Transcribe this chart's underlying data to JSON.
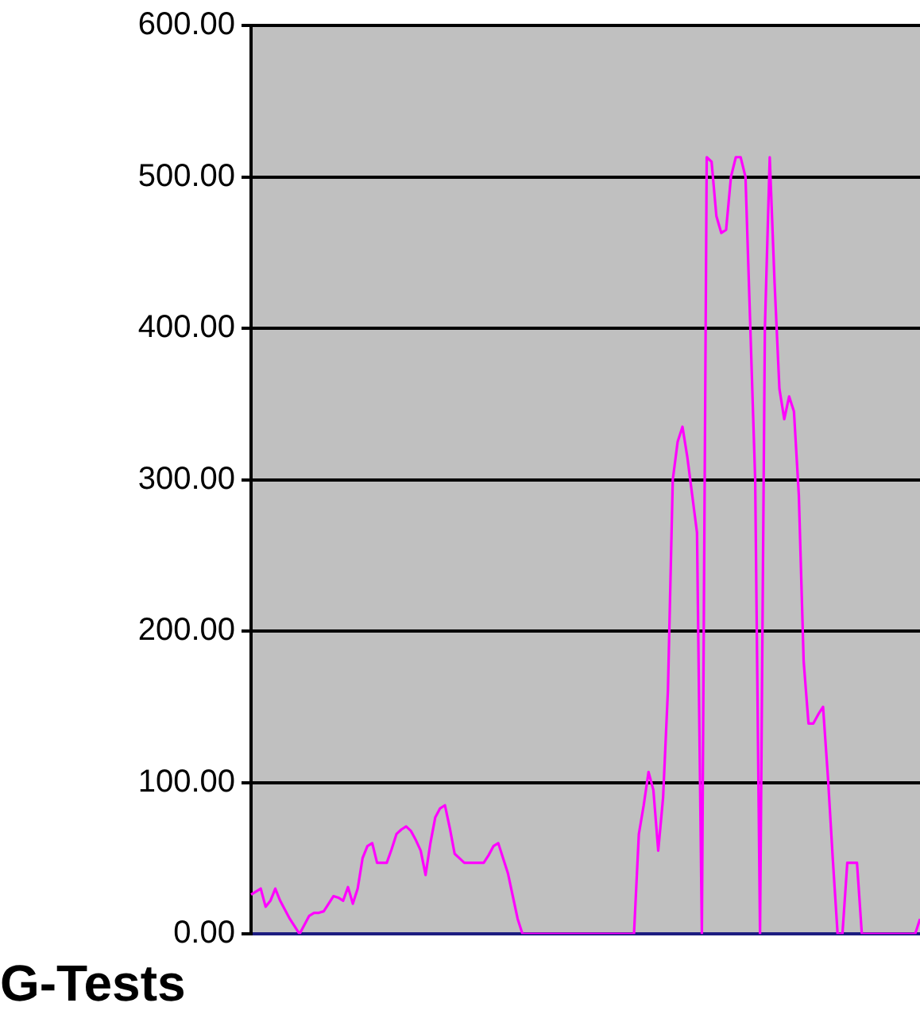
{
  "chart_data": {
    "type": "line",
    "title": "G-Tests",
    "categories": [
      null,
      null,
      null,
      null,
      null,
      null,
      null,
      null,
      null,
      null,
      null,
      null,
      null,
      null,
      null,
      null,
      null,
      null,
      null,
      null,
      null,
      null,
      null,
      null,
      null,
      null,
      null,
      null,
      null,
      null,
      null,
      null,
      null,
      null,
      null,
      null,
      null,
      null,
      null,
      null,
      null,
      null,
      null,
      null,
      null,
      null,
      null,
      null,
      null,
      null,
      null,
      null,
      null,
      null,
      null,
      null,
      null,
      null,
      null,
      null,
      null,
      null,
      null,
      null,
      null,
      null,
      null,
      null,
      null,
      null,
      null,
      null,
      null,
      null,
      null,
      null,
      null,
      null,
      null,
      null,
      null,
      null,
      null,
      null,
      null,
      null,
      null,
      null,
      null,
      null,
      null,
      null,
      null,
      null,
      null,
      null,
      null,
      null,
      null,
      null,
      null,
      null,
      null,
      null,
      null,
      null,
      null,
      null,
      null,
      null,
      null,
      null,
      null,
      null,
      null,
      null,
      null,
      null,
      null,
      null,
      null,
      null,
      null,
      null,
      null,
      null,
      null,
      null,
      null,
      null,
      null,
      null,
      null,
      null,
      null,
      null,
      null,
      null,
      null
    ],
    "series": [
      {
        "color": "#ff00ff",
        "values": [
          26,
          28,
          30,
          18,
          22,
          30,
          22,
          16,
          10,
          5,
          0,
          6,
          12,
          14,
          14,
          15,
          20,
          25,
          24,
          22,
          31,
          20,
          30,
          50,
          58,
          60,
          47,
          47,
          47,
          56,
          66,
          69,
          71,
          68,
          62,
          55,
          39,
          60,
          77,
          83,
          85,
          70,
          53,
          50,
          47,
          47,
          47,
          47,
          47,
          52,
          58,
          60,
          50,
          40,
          25,
          10,
          0,
          0,
          0,
          0,
          0,
          0,
          0,
          0,
          0,
          0,
          0,
          0,
          0,
          0,
          0,
          0,
          0,
          0,
          0,
          0,
          0,
          0,
          0,
          0,
          66,
          85,
          107,
          95,
          55,
          90,
          161,
          300,
          325,
          335,
          315,
          290,
          265,
          0,
          513,
          510,
          474,
          463,
          465,
          500,
          513,
          513,
          500,
          400,
          300,
          0,
          400,
          513,
          430,
          360,
          340,
          355,
          345,
          290,
          180,
          139,
          139,
          145,
          150,
          104,
          50,
          0,
          0,
          47,
          47,
          47,
          0,
          0,
          0,
          0,
          0,
          0,
          0,
          0,
          0,
          0,
          0,
          0,
          10
        ]
      }
    ],
    "ylim": [
      0,
      600
    ],
    "yticks": [
      {
        "value": 0,
        "label": "0.00"
      },
      {
        "value": 100,
        "label": "100.00"
      },
      {
        "value": 200,
        "label": "200.00"
      },
      {
        "value": 300,
        "label": "300.00"
      },
      {
        "value": 400,
        "label": "400.00"
      },
      {
        "value": 500,
        "label": "500.00"
      },
      {
        "value": 600,
        "label": "600.00"
      }
    ],
    "grid": "y",
    "tick_labels": "y",
    "legend": false,
    "marker": "none",
    "line_style": "solid"
  }
}
